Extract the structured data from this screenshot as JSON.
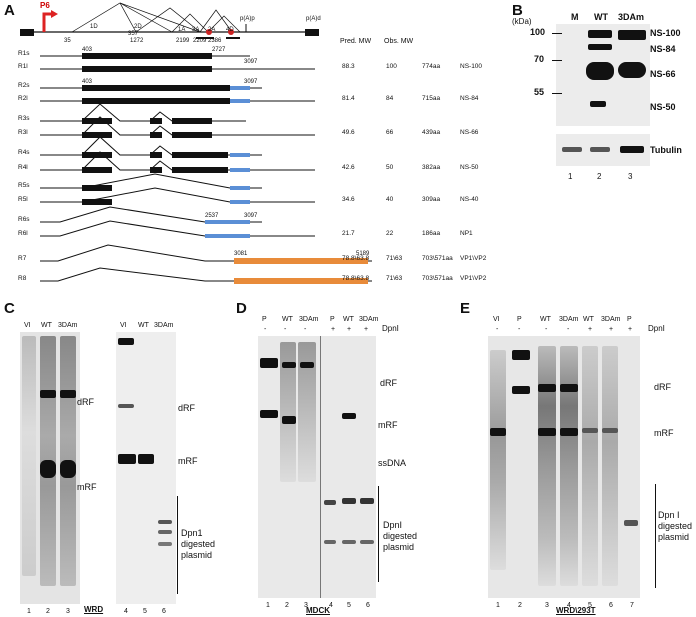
{
  "panels": {
    "A": "A",
    "B": "B",
    "C": "C",
    "D": "D",
    "E": "E"
  },
  "panelA": {
    "promoter": "P6",
    "polyA_proximal": "p(A)p",
    "polyA_distal": "p(A)d",
    "positions_top": [
      "35",
      "357",
      "1272",
      "2199",
      "2209",
      "2386",
      "2420",
      "2445",
      "2641",
      "2659",
      "2691",
      "2705",
      "3097"
    ],
    "donor_labels": [
      "1D",
      "2D",
      "1A",
      "3A",
      "2A",
      "4D"
    ],
    "header_pred": "Pred. MW",
    "header_obs": "Obs. MW",
    "transcripts": [
      {
        "name": "R1s",
        "pred": "",
        "obs": "",
        "aa": "",
        "prot": ""
      },
      {
        "name": "R1l",
        "pred": "88.3",
        "obs": "100",
        "aa": "774aa",
        "prot": "NS-100"
      },
      {
        "name": "R2s",
        "pred": "",
        "obs": "",
        "aa": "",
        "prot": ""
      },
      {
        "name": "R2l",
        "pred": "81.4",
        "obs": "84",
        "aa": "715aa",
        "prot": "NS-84"
      },
      {
        "name": "R3s",
        "pred": "",
        "obs": "",
        "aa": "",
        "prot": ""
      },
      {
        "name": "R3l",
        "pred": "49.6",
        "obs": "66",
        "aa": "439aa",
        "prot": "NS-66"
      },
      {
        "name": "R4s",
        "pred": "",
        "obs": "",
        "aa": "",
        "prot": ""
      },
      {
        "name": "R4l",
        "pred": "42.6",
        "obs": "50",
        "aa": "382aa",
        "prot": "NS-50"
      },
      {
        "name": "R5s",
        "pred": "",
        "obs": "",
        "aa": "",
        "prot": ""
      },
      {
        "name": "R5l",
        "pred": "34.6",
        "obs": "40",
        "aa": "309aa",
        "prot": "NS-40"
      },
      {
        "name": "R6s",
        "pred": "",
        "obs": "",
        "aa": "",
        "prot": ""
      },
      {
        "name": "R6l",
        "pred": "21.7",
        "obs": "22",
        "aa": "186aa",
        "prot": "NP1"
      },
      {
        "name": "R7",
        "pred": "78.8\\63.8",
        "obs": "71\\63",
        "aa": "703\\571aa",
        "prot": "VP1\\VP2"
      },
      {
        "name": "R8",
        "pred": "78.8\\63.8",
        "obs": "71\\63",
        "aa": "703\\571aa",
        "prot": "VP1\\VP2"
      }
    ],
    "coords": {
      "r1_start": "403",
      "r1_end": "2727",
      "r1_end2": "3097",
      "r2_start": "403",
      "r2_end": "3097",
      "r6_start": "2537",
      "r6_end": "3097",
      "r7_start": "3081",
      "r7_end": "5189"
    }
  },
  "panelB": {
    "kda": "(kDa)",
    "lanes": [
      "M",
      "WT",
      "3DAm"
    ],
    "markers": [
      "100",
      "70",
      "55"
    ],
    "bands": [
      "NS-100",
      "NS-84",
      "NS-66",
      "NS-50"
    ],
    "loading": "Tubulin",
    "lane_numbers": [
      "1",
      "2",
      "3"
    ]
  },
  "panelC": {
    "lanes_left": [
      "VI",
      "WT",
      "3DAm"
    ],
    "lanes_right": [
      "VI",
      "WT",
      "3DAm"
    ],
    "dRF": "dRF",
    "mRF": "mRF",
    "dpn_label": "Dpn1 digested plasmid",
    "lane_numbers": [
      "1",
      "2",
      "3",
      "4",
      "5",
      "6"
    ],
    "cell": "WRD"
  },
  "panelD": {
    "lanes": [
      "P",
      "WT",
      "3DAm",
      "P",
      "WT",
      "3DAm"
    ],
    "dpn_row_label": "DpnI",
    "dpn_signs": [
      "-",
      "-",
      "-",
      "+",
      "+",
      "+"
    ],
    "dRF": "dRF",
    "mRF": "mRF",
    "ssDNA": "ssDNA",
    "dpn_label": "DpnI digested plasmid",
    "lane_numbers": [
      "1",
      "2",
      "3",
      "4",
      "5",
      "6"
    ],
    "cell": "MDCK"
  },
  "panelE": {
    "lanes": [
      "VI",
      "P",
      "WT",
      "3DAm",
      "WT",
      "3DAm",
      "P"
    ],
    "dpn_row_label": "DpnI",
    "dpn_signs": [
      "-",
      "-",
      "-",
      "-",
      "+",
      "+",
      "+"
    ],
    "dRF": "dRF",
    "mRF": "mRF",
    "dpn_label": "Dpn I digested plasmid",
    "lane_numbers": [
      "1",
      "2",
      "3",
      "4",
      "5",
      "6",
      "7"
    ],
    "cell": "WRD\\293T"
  }
}
